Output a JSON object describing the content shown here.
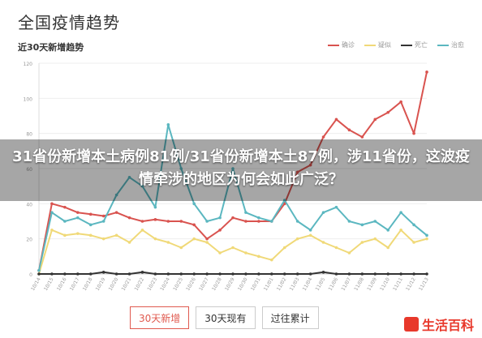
{
  "page_title": "全国疫情趋势",
  "headline": "31省份新增本土病例81例/31省份新增本土87例，涉11省份，这波疫情牵涉的地区为何会如此广泛？",
  "tabs": [
    {
      "label": "30天新增",
      "active": true
    },
    {
      "label": "30天现有",
      "active": false
    },
    {
      "label": "过往累计",
      "active": false
    }
  ],
  "watermark": {
    "text": "生活百科"
  },
  "colors": {
    "red": "#d9534f",
    "yellow": "#f0d978",
    "black": "#333333",
    "teal": "#5bb7c0",
    "accent": "#e05a4f"
  },
  "chart_data": {
    "type": "line",
    "title": "近30天新增趋势",
    "ylim": [
      0,
      120
    ],
    "yticks": [
      0,
      20,
      40,
      60,
      80,
      100,
      120
    ],
    "grid": true,
    "legend_position": "top-right",
    "x": [
      "10/14",
      "10/15",
      "10/16",
      "10/17",
      "10/18",
      "10/19",
      "10/20",
      "10/21",
      "10/22",
      "10/23",
      "10/24",
      "10/25",
      "10/26",
      "10/27",
      "10/28",
      "10/29",
      "10/30",
      "10/31",
      "11/01",
      "11/02",
      "11/03",
      "11/04",
      "11/05",
      "11/06",
      "11/07",
      "11/08",
      "11/09",
      "11/10",
      "11/11",
      "11/12",
      "11/13"
    ],
    "series": [
      {
        "name": "确诊",
        "color": "#d9534f",
        "values": [
          2,
          40,
          38,
          35,
          34,
          33,
          35,
          32,
          30,
          31,
          30,
          30,
          28,
          20,
          25,
          32,
          30,
          30,
          30,
          40,
          58,
          62,
          78,
          88,
          82,
          78,
          88,
          92,
          98,
          80,
          115
        ]
      },
      {
        "name": "疑似",
        "color": "#f0d978",
        "values": [
          0,
          25,
          22,
          23,
          22,
          20,
          22,
          18,
          25,
          20,
          18,
          15,
          20,
          18,
          12,
          15,
          12,
          10,
          8,
          15,
          20,
          22,
          18,
          15,
          12,
          18,
          20,
          15,
          25,
          18,
          20
        ]
      },
      {
        "name": "死亡",
        "color": "#333333",
        "values": [
          0,
          0,
          0,
          0,
          0,
          1,
          0,
          0,
          1,
          0,
          0,
          0,
          0,
          0,
          0,
          0,
          0,
          0,
          0,
          0,
          0,
          0,
          1,
          0,
          0,
          0,
          0,
          0,
          0,
          0,
          0
        ]
      },
      {
        "name": "治愈",
        "color": "#5bb7c0",
        "values": [
          2,
          35,
          30,
          32,
          28,
          30,
          45,
          55,
          50,
          38,
          85,
          60,
          40,
          30,
          32,
          60,
          35,
          32,
          30,
          42,
          30,
          25,
          35,
          38,
          30,
          28,
          30,
          25,
          35,
          28,
          22
        ]
      }
    ]
  }
}
